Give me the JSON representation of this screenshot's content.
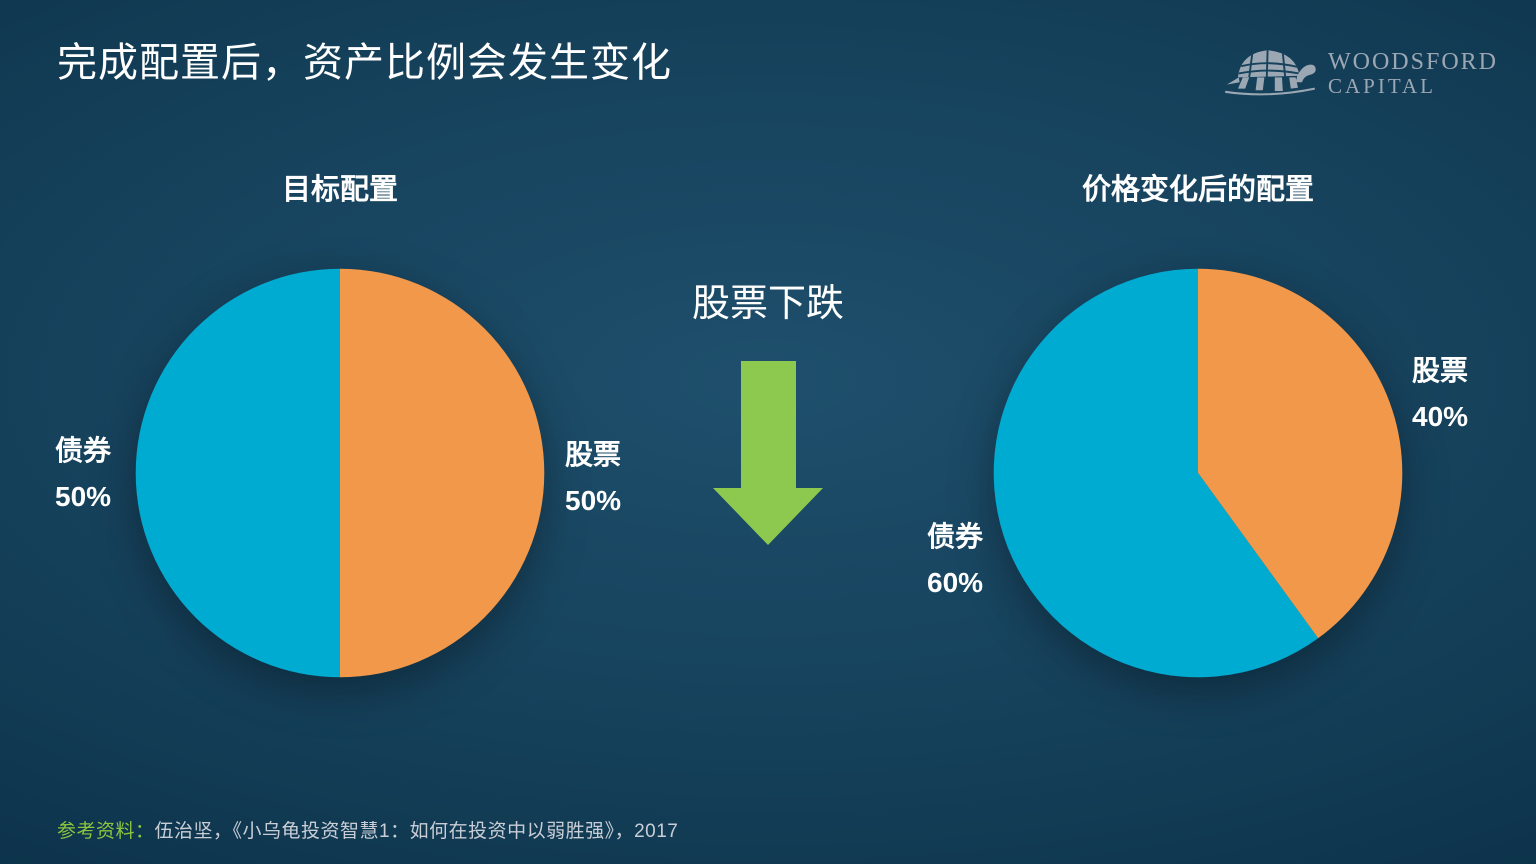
{
  "slide": {
    "title": "完成配置后，资产比例会发生变化",
    "middle_heading": "股票下跌",
    "footer_prefix": "参考资料：",
    "footer_text": "伍治坚，《小乌龟投资智慧1：如何在投资中以弱胜强》，2017",
    "logo": {
      "icon": "turtle-icon",
      "company_line1": "WOODSFORD",
      "company_line2": "CAPITAL"
    }
  },
  "colors": {
    "background_center": "#1e4f6c",
    "background_edge": "#04273c",
    "bonds_cyan": "#00abd2",
    "stocks_orange": "#f2984a",
    "arrow_green": "#8dc94e",
    "footer_green": "#8cc63f",
    "logo_gray": "#9ca7b4"
  },
  "chart_data": [
    {
      "type": "pie",
      "title": "目标配置",
      "start_angle_deg": 0,
      "direction": "clockwise",
      "legend_position": "outside",
      "slices": [
        {
          "label": "股票",
          "value": 50,
          "pct_label": "50%",
          "color": "#f2984a",
          "label_side": "right"
        },
        {
          "label": "债券",
          "value": 50,
          "pct_label": "50%",
          "color": "#00abd2",
          "label_side": "left"
        }
      ]
    },
    {
      "type": "pie",
      "title": "价格变化后的配置",
      "start_angle_deg": 0,
      "direction": "clockwise",
      "legend_position": "outside",
      "slices": [
        {
          "label": "股票",
          "value": 40,
          "pct_label": "40%",
          "color": "#f2984a",
          "label_side": "right"
        },
        {
          "label": "债券",
          "value": 60,
          "pct_label": "60%",
          "color": "#00abd2",
          "label_side": "left"
        }
      ]
    }
  ]
}
